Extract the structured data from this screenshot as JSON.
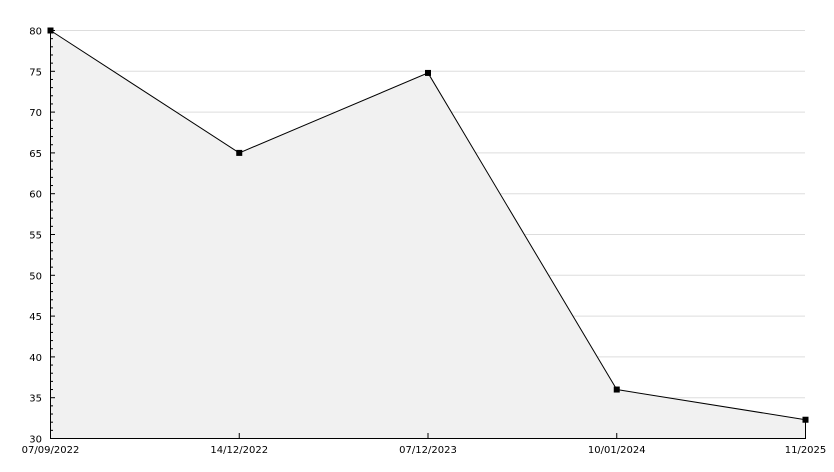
{
  "chart_data": {
    "type": "area",
    "title": "",
    "xlabel": "",
    "ylabel": "",
    "x": [
      "07/09/2022",
      "14/12/2022",
      "07/12/2023",
      "10/01/2024",
      "11/2025"
    ],
    "x_tick_labels": [
      "07/09/2022",
      "14/12/2022",
      "07/12/2023",
      "10/01/2024",
      "11/2025"
    ],
    "series": [
      {
        "values": [
          80,
          65,
          74.8,
          36,
          32.3
        ]
      }
    ],
    "ylim": [
      30,
      80
    ],
    "y_ticks": [
      30,
      35,
      40,
      45,
      50,
      55,
      60,
      65,
      70,
      75,
      80
    ],
    "y_minor_step": 1,
    "grid": true,
    "colors": {
      "line": "#000000",
      "fill": "#f1f1f1",
      "grid": "#dddddd",
      "axis": "#000000"
    }
  }
}
